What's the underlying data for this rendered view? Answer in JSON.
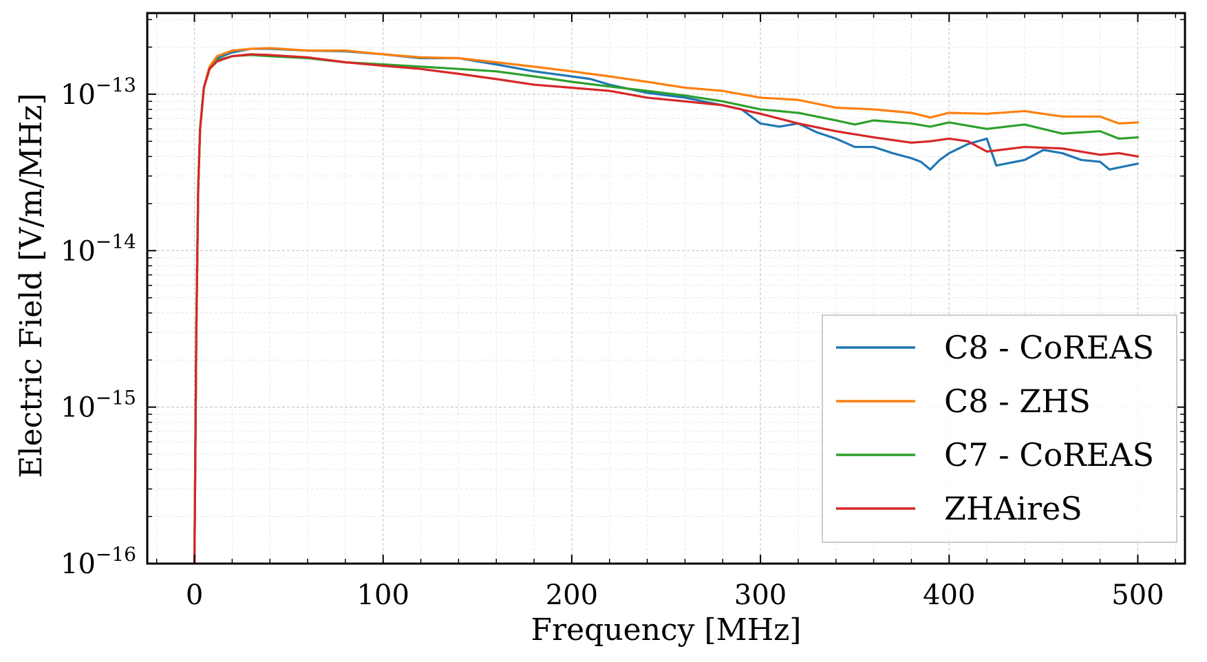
{
  "chart_data": {
    "type": "line",
    "title": "",
    "xlabel": "Frequency [MHz]",
    "ylabel": "Electric Field [V/m/MHz]",
    "xlim": [
      -25,
      525
    ],
    "ylim": [
      1e-16,
      3.3e-13
    ],
    "yscale": "log",
    "grid": true,
    "legend_position": "lower-right",
    "x_ticks": [
      0,
      100,
      200,
      300,
      400,
      500
    ],
    "x_tick_labels": [
      "0",
      "100",
      "200",
      "300",
      "400",
      "500"
    ],
    "y_ticks": [
      {
        "value": 1e-13,
        "base": "10",
        "exponent": "−13"
      },
      {
        "value": 1e-14,
        "base": "10",
        "exponent": "−14"
      },
      {
        "value": 1e-15,
        "base": "10",
        "exponent": "−15"
      },
      {
        "value": 1e-16,
        "base": "10",
        "exponent": "−16"
      }
    ],
    "series": [
      {
        "name": "C8 - CoREAS",
        "color": "#1f77b4",
        "x": [
          0,
          1,
          2,
          3,
          5,
          8,
          12,
          20,
          30,
          40,
          60,
          80,
          100,
          120,
          140,
          160,
          180,
          200,
          210,
          220,
          240,
          260,
          280,
          290,
          300,
          310,
          320,
          330,
          340,
          350,
          360,
          370,
          380,
          385,
          390,
          395,
          400,
          410,
          420,
          425,
          430,
          440,
          450,
          460,
          470,
          480,
          485,
          490,
          500
        ],
        "values": [
          1e-16,
          3e-15,
          2.5e-14,
          6e-14,
          1.1e-13,
          1.5e-13,
          1.7e-13,
          1.85e-13,
          1.95e-13,
          1.95e-13,
          1.9e-13,
          1.88e-13,
          1.8e-13,
          1.7e-13,
          1.7e-13,
          1.55e-13,
          1.4e-13,
          1.3e-13,
          1.25e-13,
          1.15e-13,
          1.02e-13,
          9.5e-14,
          8.5e-14,
          8e-14,
          6.5e-14,
          6.2e-14,
          6.5e-14,
          5.7e-14,
          5.2e-14,
          4.6e-14,
          4.6e-14,
          4.2e-14,
          3.9e-14,
          3.7e-14,
          3.3e-14,
          3.8e-14,
          4.2e-14,
          4.8e-14,
          5.2e-14,
          3.5e-14,
          3.6e-14,
          3.8e-14,
          4.4e-14,
          4.2e-14,
          3.8e-14,
          3.7e-14,
          3.3e-14,
          3.4e-14,
          3.6e-14
        ]
      },
      {
        "name": "C8 - ZHS",
        "color": "#ff7f0e",
        "x": [
          0,
          1,
          2,
          3,
          5,
          8,
          12,
          20,
          30,
          40,
          60,
          80,
          100,
          120,
          140,
          160,
          180,
          200,
          220,
          240,
          260,
          280,
          300,
          320,
          340,
          360,
          380,
          390,
          400,
          420,
          440,
          460,
          480,
          490,
          500
        ],
        "values": [
          1e-16,
          3e-15,
          2.5e-14,
          6e-14,
          1.1e-13,
          1.5e-13,
          1.75e-13,
          1.9e-13,
          1.95e-13,
          1.97e-13,
          1.9e-13,
          1.9e-13,
          1.8e-13,
          1.72e-13,
          1.7e-13,
          1.6e-13,
          1.5e-13,
          1.4e-13,
          1.3e-13,
          1.2e-13,
          1.1e-13,
          1.05e-13,
          9.5e-14,
          9.2e-14,
          8.2e-14,
          8e-14,
          7.6e-14,
          7.1e-14,
          7.6e-14,
          7.5e-14,
          7.8e-14,
          7.2e-14,
          7.2e-14,
          6.5e-14,
          6.6e-14
        ]
      },
      {
        "name": "C7 - CoREAS",
        "color": "#2ca02c",
        "x": [
          0,
          1,
          2,
          3,
          5,
          8,
          12,
          20,
          30,
          40,
          60,
          80,
          100,
          120,
          140,
          160,
          180,
          200,
          220,
          240,
          260,
          280,
          300,
          320,
          340,
          350,
          360,
          380,
          390,
          400,
          420,
          440,
          460,
          480,
          490,
          500
        ],
        "values": [
          1e-16,
          3e-15,
          2.5e-14,
          6e-14,
          1.1e-13,
          1.45e-13,
          1.65e-13,
          1.75e-13,
          1.78e-13,
          1.75e-13,
          1.7e-13,
          1.6e-13,
          1.55e-13,
          1.5e-13,
          1.45e-13,
          1.4e-13,
          1.3e-13,
          1.2e-13,
          1.12e-13,
          1.05e-13,
          9.8e-14,
          9e-14,
          8e-14,
          7.6e-14,
          6.8e-14,
          6.4e-14,
          6.8e-14,
          6.5e-14,
          6.2e-14,
          6.6e-14,
          6e-14,
          6.4e-14,
          5.6e-14,
          5.8e-14,
          5.2e-14,
          5.3e-14
        ]
      },
      {
        "name": "ZHAireS",
        "color": "#d62728",
        "x": [
          0,
          1,
          2,
          3,
          5,
          8,
          12,
          20,
          30,
          40,
          60,
          80,
          100,
          120,
          140,
          160,
          180,
          200,
          220,
          240,
          260,
          280,
          300,
          320,
          340,
          360,
          380,
          390,
          400,
          410,
          420,
          440,
          460,
          480,
          490,
          500
        ],
        "values": [
          1e-16,
          3e-15,
          2.5e-14,
          6e-14,
          1.1e-13,
          1.45e-13,
          1.62e-13,
          1.75e-13,
          1.8e-13,
          1.78e-13,
          1.72e-13,
          1.6e-13,
          1.52e-13,
          1.45e-13,
          1.35e-13,
          1.25e-13,
          1.15e-13,
          1.1e-13,
          1.05e-13,
          9.5e-14,
          9e-14,
          8.5e-14,
          7.5e-14,
          6.5e-14,
          5.8e-14,
          5.3e-14,
          4.9e-14,
          5e-14,
          5.2e-14,
          5e-14,
          4.3e-14,
          4.6e-14,
          4.5e-14,
          4.1e-14,
          4.2e-14,
          4e-14
        ]
      }
    ]
  }
}
